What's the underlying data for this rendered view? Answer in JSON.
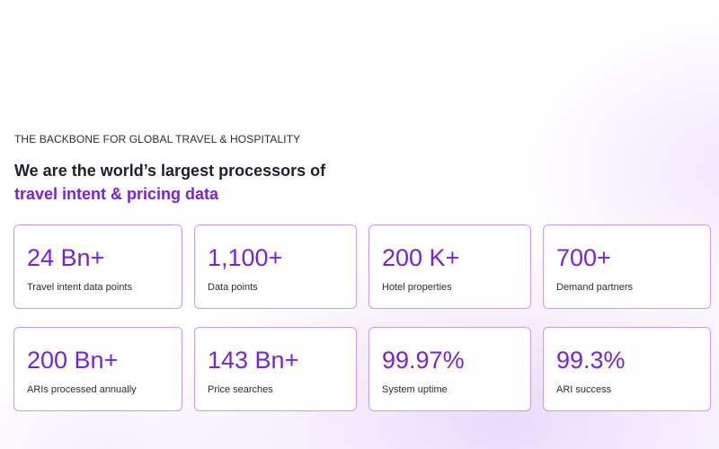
{
  "section": {
    "eyebrow": "THE BACKBONE FOR GLOBAL TRAVEL & HOSPITALITY",
    "heading_line1": "We are the world’s largest processors of",
    "heading_line2": "travel intent & pricing data"
  },
  "colors": {
    "accent": "#7b22d6",
    "card_border": "#c99af0",
    "text": "#2b2b3a"
  },
  "stats": [
    {
      "value": "24 Bn+",
      "label": "Travel intent data points"
    },
    {
      "value": "1,100+",
      "label": "Data points"
    },
    {
      "value": "200 K+",
      "label": "Hotel properties"
    },
    {
      "value": "700+",
      "label": "Demand partners"
    },
    {
      "value": "200 Bn+",
      "label": "ARIs processed annually"
    },
    {
      "value": "143 Bn+",
      "label": "Price searches"
    },
    {
      "value": "99.97%",
      "label": "System uptime"
    },
    {
      "value": "99.3%",
      "label": "ARI success"
    }
  ]
}
